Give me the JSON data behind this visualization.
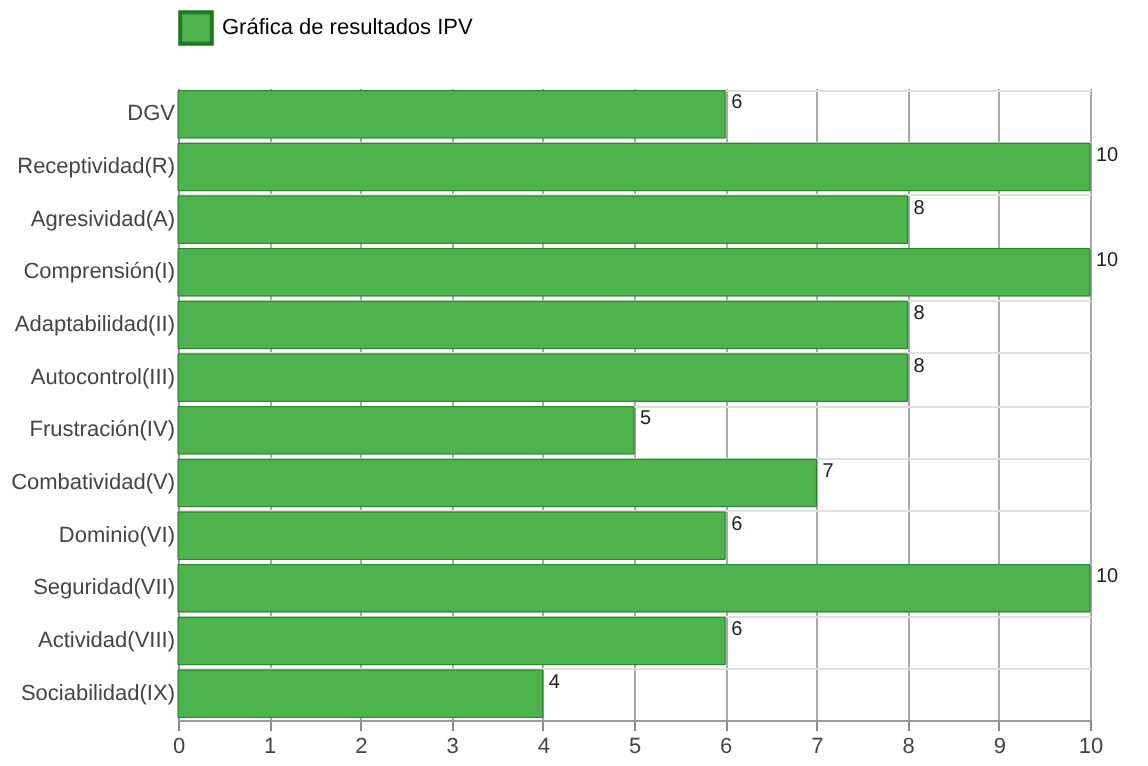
{
  "chart_data": {
    "type": "bar",
    "orientation": "horizontal",
    "categories": [
      "DGV",
      "Receptividad(R)",
      "Agresividad(A)",
      "Comprensión(I)",
      "Adaptabilidad(II)",
      "Autocontrol(III)",
      "Frustración(IV)",
      "Combatividad(V)",
      "Dominio(VI)",
      "Seguridad(VII)",
      "Actividad(VIII)",
      "Sociabilidad(IX)"
    ],
    "series": [
      {
        "name": "Gráfica de resultados IPV",
        "color": "#4db34d",
        "values": [
          6,
          10,
          8,
          10,
          8,
          8,
          5,
          7,
          6,
          10,
          6,
          4
        ]
      }
    ],
    "xlim": [
      0,
      10
    ],
    "xticks": [
      0,
      1,
      2,
      3,
      4,
      5,
      6,
      7,
      8,
      9,
      10
    ],
    "grid": true,
    "legend": "top",
    "data_labels": true
  }
}
